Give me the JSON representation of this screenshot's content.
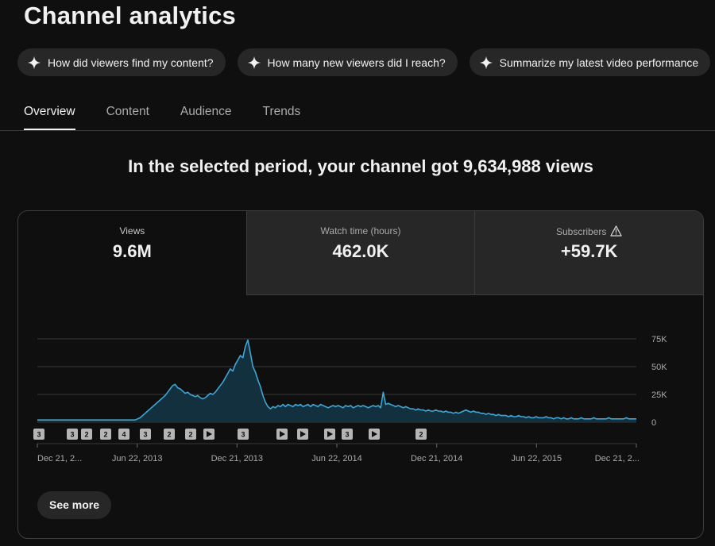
{
  "page_title": "Channel analytics",
  "chips": [
    {
      "label": "How did viewers find my content?",
      "icon": "sparkle-icon"
    },
    {
      "label": "How many new viewers did I reach?",
      "icon": "sparkle-icon"
    },
    {
      "label": "Summarize my latest video performance",
      "icon": "sparkle-icon"
    }
  ],
  "tabs": [
    {
      "label": "Overview",
      "active": true
    },
    {
      "label": "Content",
      "active": false
    },
    {
      "label": "Audience",
      "active": false
    },
    {
      "label": "Trends",
      "active": false
    }
  ],
  "headline": "In the selected period, your channel got 9,634,988 views",
  "metrics": [
    {
      "label": "Views",
      "value": "9.6M"
    },
    {
      "label": "Watch time (hours)",
      "value": "462.0K"
    },
    {
      "label": "Subscribers",
      "value": "+59.7K",
      "icon": "warning-icon"
    }
  ],
  "see_more_label": "See more",
  "colors": {
    "line": "#3ea6d6",
    "fill": "#12303d",
    "grid": "#3a3a3a",
    "badge": "#b5b5b5"
  },
  "chart_data": {
    "type": "area",
    "series": [
      {
        "values": [
          2,
          2,
          2,
          2,
          2,
          2,
          2,
          2,
          2,
          2,
          2,
          2,
          2,
          2,
          2,
          2,
          2,
          2,
          2,
          2,
          2,
          2,
          2,
          2,
          2,
          2,
          2,
          2,
          2,
          2,
          2,
          2,
          2,
          2,
          2,
          2,
          2,
          2,
          2,
          2,
          3,
          4,
          6,
          8,
          10,
          12,
          14,
          16,
          18,
          20,
          22,
          24,
          27,
          30,
          33,
          34,
          31,
          30,
          28,
          26,
          27,
          25,
          24,
          23,
          24,
          22,
          21,
          22,
          24,
          26,
          25,
          27,
          30,
          33,
          36,
          40,
          44,
          48,
          46,
          52,
          56,
          60,
          58,
          68,
          74,
          62,
          50,
          45,
          38,
          32,
          24,
          18,
          14,
          12,
          14,
          13,
          15,
          14,
          16,
          14,
          16,
          15,
          14,
          16,
          15,
          16,
          14,
          15,
          16,
          14,
          16,
          15,
          14,
          16,
          15,
          14,
          13,
          14,
          15,
          14,
          15,
          14,
          13,
          15,
          14,
          15,
          13,
          14,
          15,
          14,
          15,
          14,
          13,
          14,
          15,
          14,
          15,
          13,
          27,
          16,
          17,
          16,
          15,
          14,
          15,
          14,
          13,
          14,
          13,
          12,
          12,
          11,
          12,
          11,
          11,
          10,
          11,
          10,
          10,
          11,
          10,
          10,
          9,
          10,
          9,
          9,
          8,
          9,
          8,
          9,
          10,
          11,
          10,
          9,
          10,
          9,
          9,
          8,
          8,
          7,
          8,
          7,
          7,
          6,
          7,
          6,
          6,
          6,
          5,
          6,
          5,
          5,
          6,
          5,
          5,
          4,
          5,
          4,
          4,
          5,
          4,
          4,
          4,
          5,
          4,
          4,
          3,
          4,
          4,
          3,
          4,
          3,
          3,
          4,
          3,
          3,
          3,
          4,
          3,
          3,
          3,
          3,
          4,
          3,
          3,
          3,
          3,
          3,
          4,
          3,
          3,
          3,
          3,
          3,
          3,
          4,
          3,
          3,
          3,
          3
        ]
      }
    ],
    "ylim": [
      0,
      75
    ],
    "yticks": [
      "75K",
      "50K",
      "25K",
      "0"
    ],
    "xticks": [
      "Dec 21, 2...",
      "Jun 22, 2013",
      "Dec 21, 2013",
      "Jun 22, 2014",
      "Dec 21, 2014",
      "Jun 22, 2015",
      "Dec 21, 2..."
    ],
    "markers": [
      {
        "label": "3",
        "kind": "count"
      },
      {
        "label": "3",
        "kind": "count"
      },
      {
        "label": "2",
        "kind": "count"
      },
      {
        "label": "2",
        "kind": "count"
      },
      {
        "label": "4",
        "kind": "count"
      },
      {
        "label": "3",
        "kind": "count"
      },
      {
        "label": "2",
        "kind": "count"
      },
      {
        "label": "2",
        "kind": "count"
      },
      {
        "label": "",
        "kind": "play"
      },
      {
        "label": "3",
        "kind": "count"
      },
      {
        "label": "",
        "kind": "play"
      },
      {
        "label": "",
        "kind": "play"
      },
      {
        "label": "",
        "kind": "play"
      },
      {
        "label": "3",
        "kind": "count"
      },
      {
        "label": "",
        "kind": "play"
      },
      {
        "label": "2",
        "kind": "count"
      }
    ]
  }
}
